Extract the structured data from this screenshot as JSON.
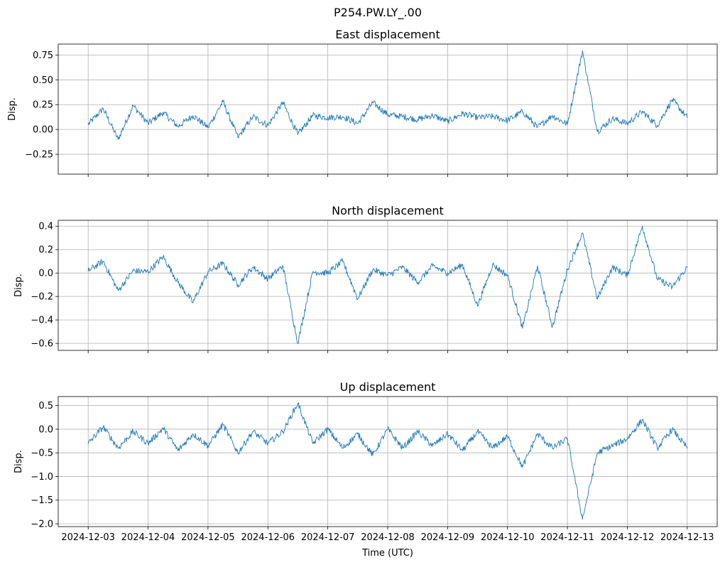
{
  "figure_title": "P254.PW.LY_.00",
  "colors": {
    "series": "#1f77b4"
  },
  "chart_data": [
    {
      "type": "line",
      "title": "East displacement",
      "xlabel": "",
      "ylabel": "Disp.",
      "x_ticks": [
        "2024-12-03",
        "2024-12-04",
        "2024-12-05",
        "2024-12-06",
        "2024-12-07",
        "2024-12-08",
        "2024-12-09",
        "2024-12-10",
        "2024-12-11",
        "2024-12-12",
        "2024-12-13"
      ],
      "y_ticks": [
        -0.25,
        0.0,
        0.25,
        0.5,
        0.75
      ],
      "y_tick_labels": [
        "−0.25",
        "0.00",
        "0.25",
        "0.50",
        "0.75"
      ],
      "ylim": [
        -0.45,
        0.86
      ],
      "grid": true,
      "series": [
        {
          "x": [
            "2024-12-03T00:00",
            "2024-12-03T06:00",
            "2024-12-03T12:00",
            "2024-12-03T18:00",
            "2024-12-04T00:00",
            "2024-12-04T06:00",
            "2024-12-04T12:00",
            "2024-12-04T18:00",
            "2024-12-05T00:00",
            "2024-12-05T06:00",
            "2024-12-05T12:00",
            "2024-12-05T18:00",
            "2024-12-06T00:00",
            "2024-12-06T06:00",
            "2024-12-06T12:00",
            "2024-12-06T18:00",
            "2024-12-07T00:00",
            "2024-12-07T06:00",
            "2024-12-07T12:00",
            "2024-12-07T18:00",
            "2024-12-08T00:00",
            "2024-12-08T06:00",
            "2024-12-08T12:00",
            "2024-12-08T18:00",
            "2024-12-09T00:00",
            "2024-12-09T06:00",
            "2024-12-09T12:00",
            "2024-12-09T18:00",
            "2024-12-10T00:00",
            "2024-12-10T06:00",
            "2024-12-10T12:00",
            "2024-12-10T18:00",
            "2024-12-11T00:00",
            "2024-12-11T06:00",
            "2024-12-11T12:00",
            "2024-12-11T18:00",
            "2024-12-12T00:00",
            "2024-12-12T06:00",
            "2024-12-12T12:00",
            "2024-12-12T18:00",
            "2024-12-13T00:00"
          ],
          "y": [
            0.05,
            0.21,
            -0.1,
            0.24,
            0.06,
            0.17,
            0.03,
            0.14,
            0.02,
            0.28,
            -0.08,
            0.13,
            0.04,
            0.27,
            -0.05,
            0.14,
            0.12,
            0.13,
            0.06,
            0.27,
            0.15,
            0.13,
            0.1,
            0.14,
            0.08,
            0.16,
            0.12,
            0.13,
            0.09,
            0.18,
            0.02,
            0.14,
            0.05,
            0.79,
            -0.02,
            0.11,
            0.06,
            0.18,
            0.04,
            0.3,
            0.12
          ]
        }
      ]
    },
    {
      "type": "line",
      "title": "North displacement",
      "xlabel": "",
      "ylabel": "Disp.",
      "x_ticks": [
        "2024-12-03",
        "2024-12-04",
        "2024-12-05",
        "2024-12-06",
        "2024-12-07",
        "2024-12-08",
        "2024-12-09",
        "2024-12-10",
        "2024-12-11",
        "2024-12-12",
        "2024-12-13"
      ],
      "y_ticks": [
        -0.6,
        -0.4,
        -0.2,
        0.0,
        0.2,
        0.4
      ],
      "y_tick_labels": [
        "−0.6",
        "−0.4",
        "−0.2",
        "0.0",
        "0.2",
        "0.4"
      ],
      "ylim": [
        -0.66,
        0.45
      ],
      "grid": true,
      "series": [
        {
          "x": [
            "2024-12-03T00:00",
            "2024-12-03T06:00",
            "2024-12-03T12:00",
            "2024-12-03T18:00",
            "2024-12-04T00:00",
            "2024-12-04T06:00",
            "2024-12-04T12:00",
            "2024-12-04T18:00",
            "2024-12-05T00:00",
            "2024-12-05T06:00",
            "2024-12-05T12:00",
            "2024-12-05T18:00",
            "2024-12-06T00:00",
            "2024-12-06T06:00",
            "2024-12-06T12:00",
            "2024-12-06T18:00",
            "2024-12-07T00:00",
            "2024-12-07T06:00",
            "2024-12-07T12:00",
            "2024-12-07T18:00",
            "2024-12-08T00:00",
            "2024-12-08T06:00",
            "2024-12-08T12:00",
            "2024-12-08T18:00",
            "2024-12-09T00:00",
            "2024-12-09T06:00",
            "2024-12-09T12:00",
            "2024-12-09T18:00",
            "2024-12-10T00:00",
            "2024-12-10T06:00",
            "2024-12-10T12:00",
            "2024-12-10T18:00",
            "2024-12-11T00:00",
            "2024-12-11T06:00",
            "2024-12-11T12:00",
            "2024-12-11T18:00",
            "2024-12-12T00:00",
            "2024-12-12T06:00",
            "2024-12-12T12:00",
            "2024-12-12T18:00",
            "2024-12-13T00:00"
          ],
          "y": [
            0.02,
            0.1,
            -0.15,
            0.02,
            0.01,
            0.14,
            -0.08,
            -0.25,
            0.01,
            0.08,
            -0.1,
            0.05,
            -0.05,
            0.06,
            -0.6,
            0.01,
            0.0,
            0.1,
            -0.22,
            0.03,
            -0.02,
            0.05,
            -0.08,
            0.06,
            0.0,
            0.07,
            -0.28,
            0.07,
            -0.02,
            -0.47,
            0.06,
            -0.46,
            0.03,
            0.34,
            -0.22,
            0.05,
            -0.02,
            0.4,
            -0.05,
            -0.12,
            0.05
          ]
        }
      ]
    },
    {
      "type": "line",
      "title": "Up displacement",
      "xlabel": "Time (UTC)",
      "ylabel": "Disp.",
      "x_ticks": [
        "2024-12-03",
        "2024-12-04",
        "2024-12-05",
        "2024-12-06",
        "2024-12-07",
        "2024-12-08",
        "2024-12-09",
        "2024-12-10",
        "2024-12-11",
        "2024-12-12",
        "2024-12-13"
      ],
      "y_ticks": [
        -2.0,
        -1.5,
        -1.0,
        -0.5,
        0.0,
        0.5
      ],
      "y_tick_labels": [
        "−2.0",
        "−1.5",
        "−1.0",
        "−0.5",
        "0.0",
        "0.5"
      ],
      "ylim": [
        -2.06,
        0.69
      ],
      "grid": true,
      "series": [
        {
          "x": [
            "2024-12-03T00:00",
            "2024-12-03T06:00",
            "2024-12-03T12:00",
            "2024-12-03T18:00",
            "2024-12-04T00:00",
            "2024-12-04T06:00",
            "2024-12-04T12:00",
            "2024-12-04T18:00",
            "2024-12-05T00:00",
            "2024-12-05T06:00",
            "2024-12-05T12:00",
            "2024-12-05T18:00",
            "2024-12-06T00:00",
            "2024-12-06T06:00",
            "2024-12-06T12:00",
            "2024-12-06T18:00",
            "2024-12-07T00:00",
            "2024-12-07T06:00",
            "2024-12-07T12:00",
            "2024-12-07T18:00",
            "2024-12-08T00:00",
            "2024-12-08T06:00",
            "2024-12-08T12:00",
            "2024-12-08T18:00",
            "2024-12-09T00:00",
            "2024-12-09T06:00",
            "2024-12-09T12:00",
            "2024-12-09T18:00",
            "2024-12-10T00:00",
            "2024-12-10T06:00",
            "2024-12-10T12:00",
            "2024-12-10T18:00",
            "2024-12-11T00:00",
            "2024-12-11T06:00",
            "2024-12-11T12:00",
            "2024-12-11T18:00",
            "2024-12-12T00:00",
            "2024-12-12T06:00",
            "2024-12-12T12:00",
            "2024-12-12T18:00",
            "2024-12-13T00:00"
          ],
          "y": [
            -0.3,
            0.05,
            -0.4,
            -0.05,
            -0.3,
            0.02,
            -0.45,
            -0.1,
            -0.35,
            0.1,
            -0.5,
            -0.05,
            -0.3,
            -0.05,
            0.55,
            -0.3,
            0.0,
            -0.4,
            -0.1,
            -0.55,
            0.0,
            -0.4,
            -0.05,
            -0.35,
            -0.1,
            -0.45,
            -0.05,
            -0.4,
            -0.15,
            -0.8,
            -0.1,
            -0.4,
            -0.2,
            -1.9,
            -0.5,
            -0.35,
            -0.2,
            0.2,
            -0.4,
            0.0,
            -0.4
          ]
        }
      ]
    }
  ]
}
